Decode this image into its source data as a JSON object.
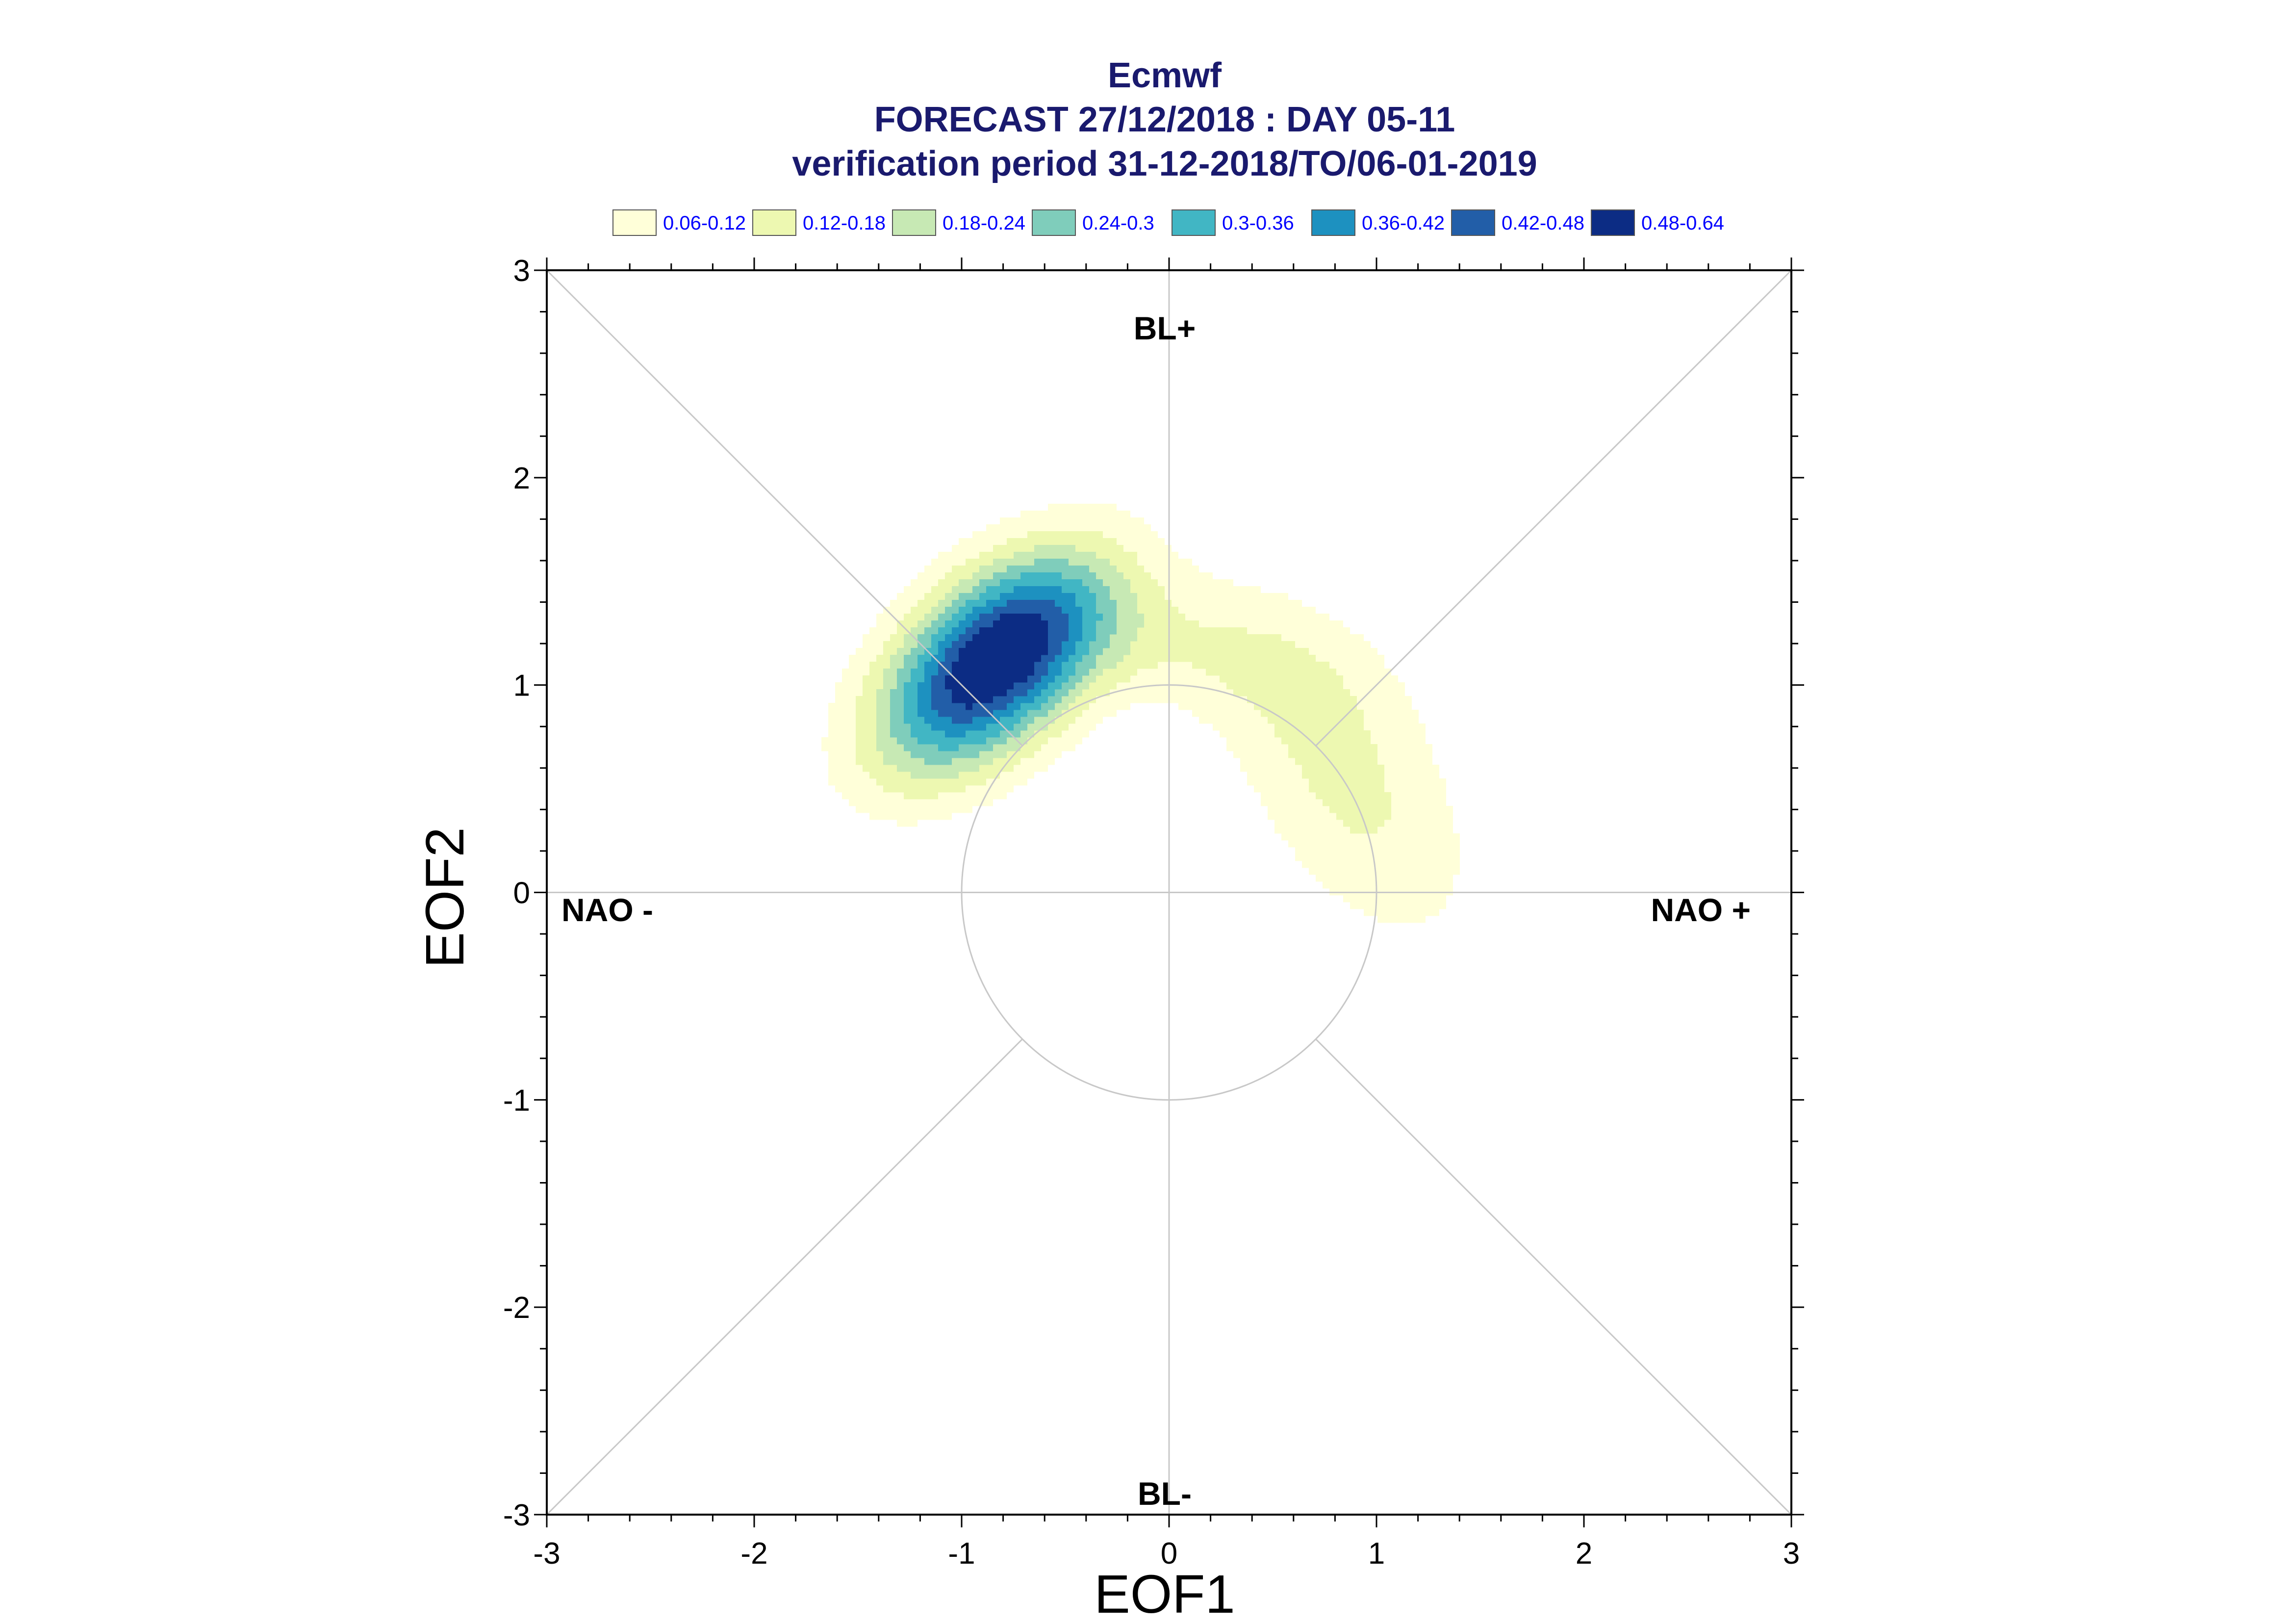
{
  "chart_data": {
    "type": "contour",
    "title_lines": [
      "Ecmwf",
      "FORECAST 27/12/2018 : DAY 05-11",
      "verification period 31-12-2018/TO/06-01-2019"
    ],
    "xlabel": "EOF1",
    "ylabel": "EOF2",
    "xlim": [
      -3,
      3
    ],
    "ylim": [
      -3,
      3
    ],
    "x_ticks": [
      "-3",
      "-2",
      "-1",
      "0",
      "1",
      "2",
      "3"
    ],
    "y_ticks": [
      "-3",
      "-2",
      "-1",
      "0",
      "1",
      "2",
      "3"
    ],
    "regime_labels": {
      "top": "BL+",
      "bottom": "BL-",
      "left": "NAO -",
      "right": "NAO +"
    },
    "reference_circle_radius": 1,
    "grid": "crosshair and diagonals",
    "legend_position": "top",
    "legend": [
      {
        "label": "0.06-0.12",
        "color": "#ffffd9"
      },
      {
        "label": "0.12-0.18",
        "color": "#edf8b1"
      },
      {
        "label": "0.18-0.24",
        "color": "#c7e9b4"
      },
      {
        "label": "0.24-0.3",
        "color": "#7fcdbb"
      },
      {
        "label": "0.3-0.36",
        "color": "#41b6c4"
      },
      {
        "label": "0.36-0.42",
        "color": "#1d91c0"
      },
      {
        "label": "0.42-0.48",
        "color": "#225ea8"
      },
      {
        "label": "0.48-0.64",
        "color": "#0c2c84"
      }
    ],
    "density_components": [
      {
        "center": [
          -0.85,
          1.1
        ],
        "sigma_major": 0.46,
        "sigma_minor": 0.26,
        "angle_deg": 42,
        "amplitude": 0.56
      },
      {
        "center": [
          0.85,
          0.55
        ],
        "sigma_major": 0.62,
        "sigma_minor": 0.32,
        "angle_deg": -58,
        "amplitude": 0.135
      },
      {
        "center": [
          0.05,
          1.2
        ],
        "sigma_major": 0.6,
        "sigma_minor": 0.22,
        "angle_deg": -12,
        "amplitude": 0.09
      }
    ]
  }
}
